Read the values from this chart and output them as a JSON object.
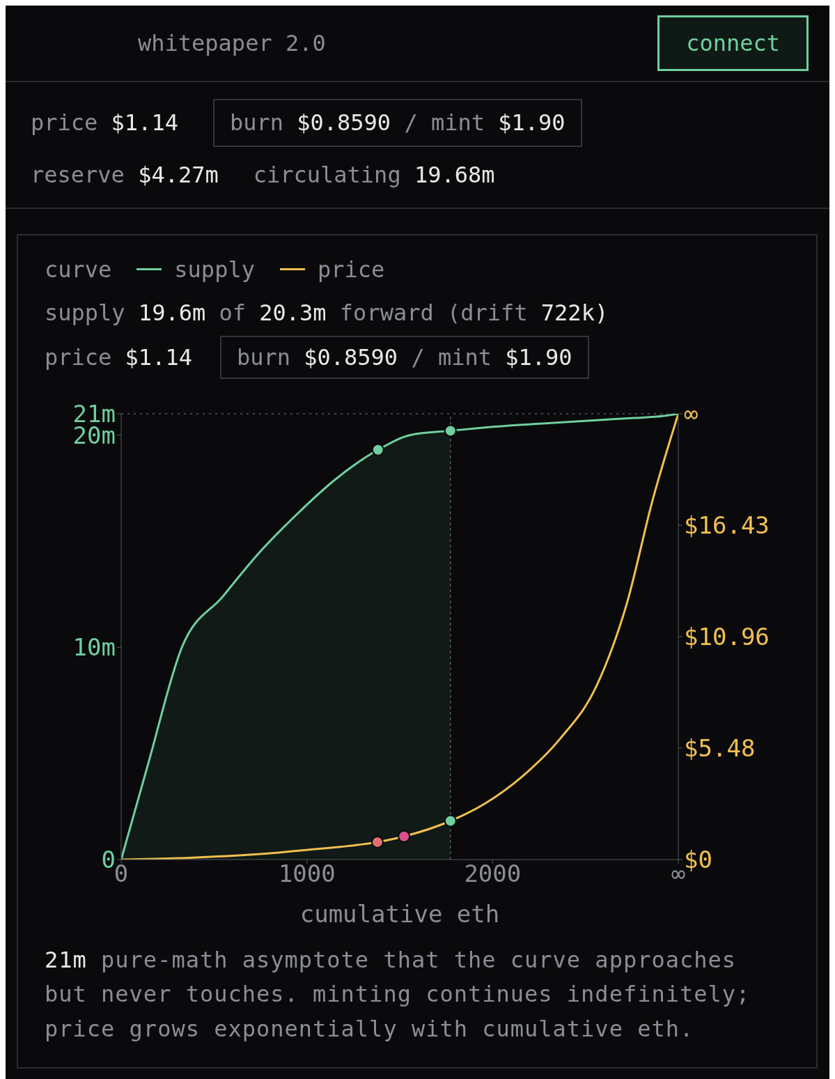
{
  "chart_data": {
    "type": "line",
    "title": "whitepaper 2.0",
    "annotations": [
      "connect",
      "price $1.14",
      "burn $0.8590 / mint $1.90",
      "reserve $4.27m",
      "circulating 19.68m",
      "supply 19.6m of 20.3m forward (drift 722k)",
      "price $1.14",
      "burn $0.8590 / mint $1.90",
      "21m pure-math asymptote that the curve approaches but never touches. minting continues indefinitely; price grows exponentially with cumulative eth."
    ],
    "legend_title": "curve",
    "legend": "top left",
    "xlabel": "cumulative eth",
    "xlim": [
      0,
      3000
    ],
    "xticks": [
      0,
      1000,
      2000,
      {
        "value": 3000,
        "label": "∞"
      }
    ],
    "ylim": [
      0,
      21
    ],
    "yticks": [
      0,
      {
        "value": 10,
        "label": "10m"
      },
      {
        "value": 20,
        "label": "20m"
      },
      {
        "value": 21,
        "label": "21m"
      }
    ],
    "y2lim": [
      0,
      21.91
    ],
    "y2ticks": [
      {
        "value": 0,
        "label": "$0"
      },
      {
        "value": 5.48,
        "label": "$5.48"
      },
      {
        "value": 10.96,
        "label": "$10.96"
      },
      {
        "value": 16.43,
        "label": "$16.43"
      },
      {
        "value": 21.91,
        "label": "∞"
      }
    ],
    "ref_lines": [
      {
        "axis": "y",
        "value": 21,
        "color": "#555a5e",
        "line_style": "dotted"
      },
      {
        "axis": "x",
        "value": 1773,
        "color": "#555a5e",
        "line_style": "dashed"
      }
    ],
    "series": [
      {
        "type": "area",
        "color": "#111a16",
        "x": [
          0,
          145,
          327,
          548,
          748,
          950,
          1152,
          1383,
          1558,
          1773
        ],
        "values": [
          0,
          4.5,
          10.0,
          12.4,
          14.5,
          16.3,
          17.9,
          19.3,
          20.0,
          20.2
        ]
      },
      {
        "name": "supply",
        "color": "#6fcf9f",
        "x": [
          0,
          145,
          327,
          548,
          748,
          950,
          1152,
          1383,
          1558,
          1773,
          1958,
          2159,
          2360,
          2561,
          2763,
          2924,
          3000
        ],
        "values": [
          0,
          4.5,
          10.0,
          12.4,
          14.5,
          16.3,
          17.9,
          19.3,
          20.0,
          20.2,
          20.35,
          20.48,
          20.59,
          20.7,
          20.8,
          20.9,
          21.0
        ]
      },
      {
        "name": "price",
        "color": "#f0c050",
        "axis": "y2",
        "x": [
          0,
          345,
          748,
          1051,
          1380,
          1523,
          1773,
          1958,
          2159,
          2360,
          2561,
          2722,
          2863,
          3000
        ],
        "values": [
          0,
          0.08,
          0.27,
          0.52,
          0.86,
          1.14,
          1.9,
          2.75,
          4.08,
          5.9,
          8.56,
          12.56,
          17.71,
          21.91
        ]
      },
      {
        "type": "scatter",
        "x": [
          1383,
          1773
        ],
        "values": [
          19.3,
          20.2
        ],
        "colors": [
          "#6fcf9f",
          "#6fcf9f"
        ]
      },
      {
        "type": "scatter",
        "axis": "y2",
        "x": [
          1380,
          1523,
          1773
        ],
        "values": [
          0.86,
          1.14,
          1.9
        ],
        "colors": [
          "#e07070",
          "#d94f8f",
          "#6fcf9f"
        ]
      }
    ]
  }
}
